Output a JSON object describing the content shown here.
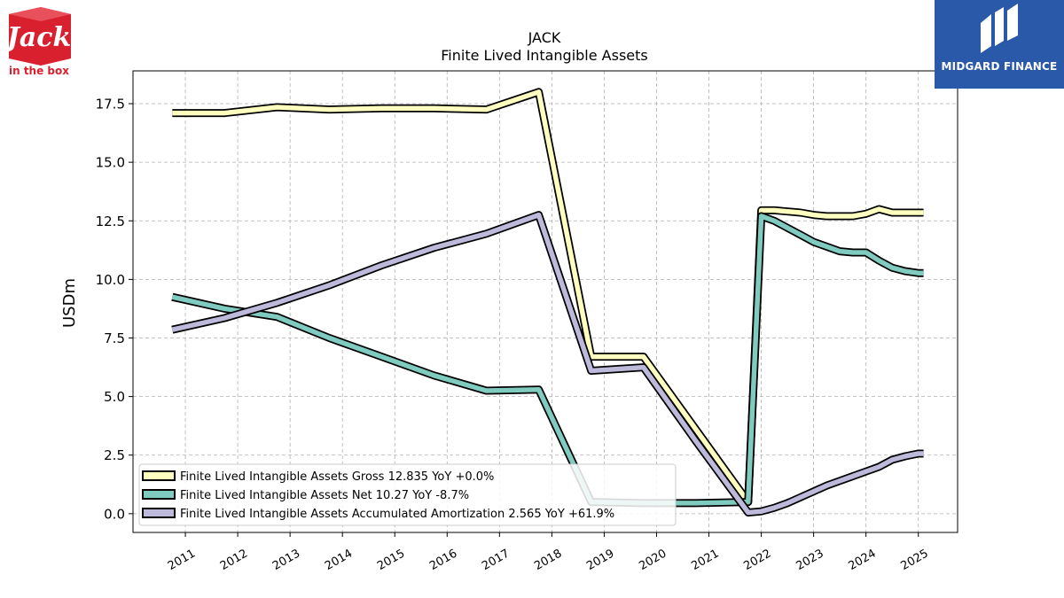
{
  "header": {
    "company_logo_text": "Jack in the box",
    "brand_name": "MIDGARD FINANCE"
  },
  "colors": {
    "gross": "#ffffbf",
    "net": "#80cbc0",
    "amortization": "#bcb9da",
    "outline": "#000000",
    "brand_blue": "#2a59a9",
    "jack_red": "#d8202f"
  },
  "chart_data": {
    "type": "line",
    "title": "JACK",
    "subtitle": "Finite Lived Intangible Assets",
    "ylabel": "USDm",
    "xlabel": "",
    "xlim": [
      2010.0,
      2025.75
    ],
    "ylim": [
      -0.8,
      18.9
    ],
    "yticks": [
      0.0,
      2.5,
      5.0,
      7.5,
      10.0,
      12.5,
      15.0,
      17.5
    ],
    "ytick_labels": [
      "0.0",
      "2.5",
      "5.0",
      "7.5",
      "10.0",
      "12.5",
      "15.0",
      "17.5"
    ],
    "xticks": [
      2011,
      2012,
      2013,
      2014,
      2015,
      2016,
      2017,
      2018,
      2019,
      2020,
      2021,
      2022,
      2023,
      2024,
      2025
    ],
    "xtick_labels": [
      "2011",
      "2012",
      "2013",
      "2014",
      "2015",
      "2016",
      "2017",
      "2018",
      "2019",
      "2020",
      "2021",
      "2022",
      "2023",
      "2024",
      "2025"
    ],
    "grid": true,
    "legend_position": "lower-left",
    "series": [
      {
        "name": "Finite Lived Intangible Assets Gross",
        "legend": "Finite Lived Intangible Assets Gross  12.835 YoY +0.0%",
        "color_key": "gross",
        "x": [
          2010.75,
          2011.75,
          2012.75,
          2013.75,
          2014.75,
          2015.75,
          2016.75,
          2017.75,
          2018.75,
          2019.75,
          2020.75,
          2021.75,
          2022.0,
          2022.25,
          2022.5,
          2022.75,
          2023.0,
          2023.25,
          2023.5,
          2023.75,
          2024.0,
          2024.25,
          2024.5,
          2024.75,
          2025.0,
          2025.1
        ],
        "y": [
          17.1,
          17.1,
          17.35,
          17.25,
          17.3,
          17.3,
          17.25,
          18.0,
          6.7,
          6.7,
          3.6,
          0.5,
          12.95,
          12.95,
          12.9,
          12.85,
          12.75,
          12.7,
          12.7,
          12.7,
          12.8,
          13.0,
          12.85,
          12.85,
          12.85,
          12.85
        ]
      },
      {
        "name": "Finite Lived Intangible Assets Net",
        "legend": "Finite Lived Intangible Assets Net  10.27 YoY -8.7%",
        "color_key": "net",
        "x": [
          2010.75,
          2011.75,
          2012.75,
          2013.75,
          2014.75,
          2015.75,
          2016.75,
          2017.75,
          2018.75,
          2019.75,
          2020.75,
          2021.75,
          2022.0,
          2022.25,
          2022.5,
          2022.75,
          2023.0,
          2023.25,
          2023.5,
          2023.75,
          2024.0,
          2024.25,
          2024.5,
          2024.75,
          2025.0,
          2025.1
        ],
        "y": [
          9.25,
          8.75,
          8.4,
          7.5,
          6.7,
          5.9,
          5.25,
          5.3,
          0.5,
          0.45,
          0.45,
          0.5,
          12.7,
          12.5,
          12.2,
          11.9,
          11.6,
          11.4,
          11.2,
          11.15,
          11.15,
          10.8,
          10.5,
          10.35,
          10.27,
          10.27
        ]
      },
      {
        "name": "Finite Lived Intangible Assets Accumulated Amortization",
        "legend": "Finite Lived Intangible Assets Accumulated Amortization  2.565 YoY +61.9%",
        "color_key": "amortization",
        "x": [
          2010.75,
          2011.75,
          2012.75,
          2013.75,
          2014.75,
          2015.75,
          2016.75,
          2017.75,
          2018.75,
          2019.75,
          2020.75,
          2021.75,
          2022.0,
          2022.25,
          2022.5,
          2022.75,
          2023.0,
          2023.25,
          2023.5,
          2023.75,
          2024.0,
          2024.25,
          2024.5,
          2024.75,
          2025.0,
          2025.1
        ],
        "y": [
          7.85,
          8.35,
          9.0,
          9.75,
          10.6,
          11.35,
          11.95,
          12.75,
          6.1,
          6.25,
          3.1,
          0.05,
          0.1,
          0.25,
          0.45,
          0.7,
          0.95,
          1.2,
          1.4,
          1.6,
          1.8,
          2.0,
          2.3,
          2.45,
          2.565,
          2.565
        ]
      }
    ]
  }
}
